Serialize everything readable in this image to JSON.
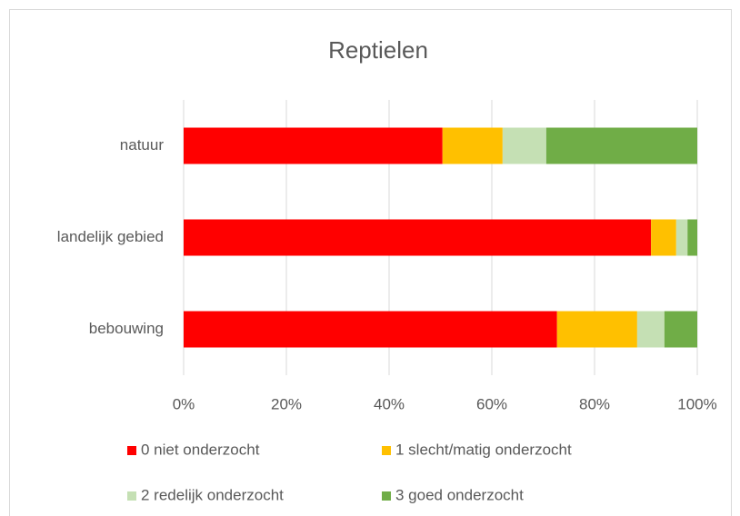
{
  "chart_data": {
    "type": "stacked_bar_horizontal",
    "title": "Reptielen",
    "categories": [
      "natuur",
      "landelijk gebied",
      "bebouwing"
    ],
    "series": [
      {
        "name": "0 niet onderzocht",
        "color": "#ff0000",
        "values": [
          50.4,
          91.0,
          72.7
        ]
      },
      {
        "name": "1 slecht/matig onderzocht",
        "color": "#ffc000",
        "values": [
          11.7,
          4.9,
          15.6
        ]
      },
      {
        "name": "2 redelijk onderzocht",
        "color": "#c5e0b4",
        "values": [
          8.5,
          2.2,
          5.3
        ]
      },
      {
        "name": "3 goed onderzocht",
        "color": "#70ad47",
        "values": [
          29.4,
          1.9,
          6.4
        ]
      }
    ],
    "xlim": [
      0,
      100
    ],
    "xticks": [
      {
        "value": 0,
        "label": "0%"
      },
      {
        "value": 20,
        "label": "20%"
      },
      {
        "value": 40,
        "label": "40%"
      },
      {
        "value": 60,
        "label": "60%"
      },
      {
        "value": 80,
        "label": "80%"
      },
      {
        "value": 100,
        "label": "100%"
      }
    ],
    "grid": true
  }
}
